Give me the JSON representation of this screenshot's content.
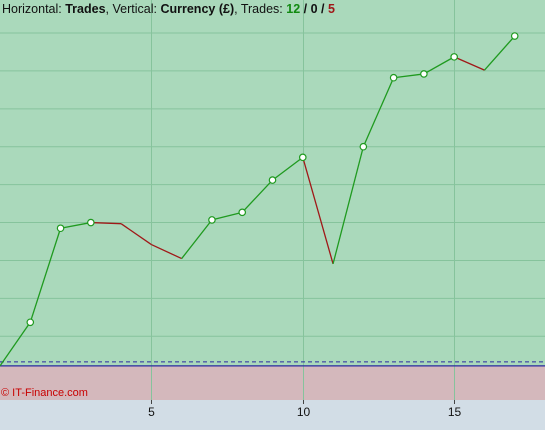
{
  "header": {
    "horizontal_label": "Horizontal:",
    "horizontal_value": "Trades",
    "sep1": ",",
    "vertical_label": "Vertical:",
    "vertical_value": "Currency (£)",
    "sep2": ",",
    "trades_label": "Trades:",
    "wins": "12",
    "slash1": " / ",
    "breakeven": "0",
    "slash2": " / ",
    "losses": "5"
  },
  "watermark": "© IT-Finance.com",
  "colors": {
    "plot_bg": "#aad9bb",
    "loss_zone_bg": "#d4b8bc",
    "axis_bg": "#d2dde6",
    "grid": "#86c39c",
    "up_line": "#1f9a1f",
    "down_line": "#a01818",
    "marker_fill": "#ffffff",
    "baseline": "#2a2aa0"
  },
  "chart_data": {
    "type": "line",
    "title": "",
    "xlabel": "Trades",
    "ylabel": "Currency (£)",
    "x": [
      0,
      1,
      2,
      3,
      4,
      5,
      6,
      7,
      8,
      9,
      10,
      11,
      12,
      13,
      14,
      15,
      16,
      17
    ],
    "y": [
      0,
      1.15,
      3.63,
      3.78,
      3.75,
      3.2,
      2.83,
      3.85,
      4.05,
      4.9,
      5.5,
      2.69,
      5.78,
      7.6,
      7.7,
      8.15,
      7.8,
      8.7
    ],
    "result": [
      null,
      "win",
      "win",
      "win",
      "loss",
      "loss",
      "loss",
      "win",
      "win",
      "win",
      "win",
      "loss",
      "win",
      "win",
      "win",
      "win",
      "loss",
      "win"
    ],
    "xticks": [
      5,
      10,
      15
    ],
    "xlim": [
      0,
      18.0
    ],
    "ylim": [
      -0.9,
      9.65
    ],
    "grid": true,
    "legend": "none"
  }
}
